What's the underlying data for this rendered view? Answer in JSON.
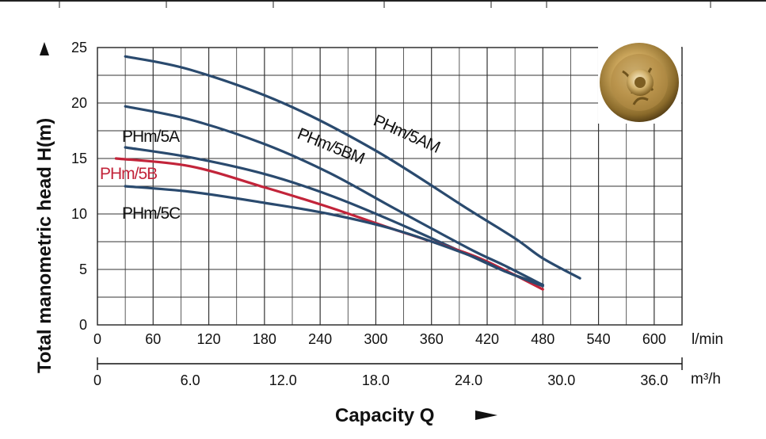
{
  "chart_data": {
    "type": "line",
    "ylabel": "Total manometric head  H(m)",
    "xlabel": "Capacity  Q",
    "ylim": [
      0,
      25
    ],
    "xlim_lmin": [
      0,
      630
    ],
    "y_ticks": [
      "0",
      "5",
      "10",
      "15",
      "20",
      "25"
    ],
    "x_ticks_lmin": [
      "0",
      "60",
      "120",
      "180",
      "240",
      "300",
      "360",
      "420",
      "480",
      "540",
      "600"
    ],
    "x_unit_lmin": "l/min",
    "x_ticks_m3h": [
      "0",
      "6.0",
      "12.0",
      "18.0",
      "24.0",
      "30.0",
      "36.0"
    ],
    "x_unit_m3h": "m³/h",
    "grid": true,
    "series": [
      {
        "name": "PHm/5AM",
        "color": "#2a4a6e",
        "x": [
          30,
          100,
          200,
          300,
          400,
          450,
          480,
          520
        ],
        "y": [
          24.2,
          23.0,
          20.0,
          15.7,
          10.4,
          7.8,
          6.0,
          4.2
        ]
      },
      {
        "name": "PHm/5BM",
        "color": "#2a4a6e",
        "x": [
          30,
          100,
          180,
          250,
          320,
          400,
          440,
          480
        ],
        "y": [
          19.7,
          18.5,
          16.3,
          13.7,
          10.5,
          6.9,
          5.3,
          3.6
        ]
      },
      {
        "name": "PHm/5A",
        "color": "#2a4a6e",
        "x": [
          30,
          100,
          180,
          250,
          320,
          400,
          440,
          480
        ],
        "y": [
          16.0,
          15.1,
          13.6,
          11.7,
          9.3,
          6.3,
          4.8,
          3.6
        ]
      },
      {
        "name": "PHm/5B",
        "color": "#c2243a",
        "x": [
          20,
          100,
          180,
          250,
          320,
          400,
          440,
          480
        ],
        "y": [
          15.0,
          14.3,
          12.4,
          10.6,
          8.6,
          6.4,
          4.9,
          3.2
        ]
      },
      {
        "name": "PHm/5C",
        "color": "#2a4a6e",
        "x": [
          30,
          100,
          180,
          250,
          320,
          400,
          440,
          480
        ],
        "y": [
          12.5,
          12.0,
          11.0,
          10.0,
          8.6,
          6.3,
          4.8,
          3.5
        ]
      }
    ]
  }
}
